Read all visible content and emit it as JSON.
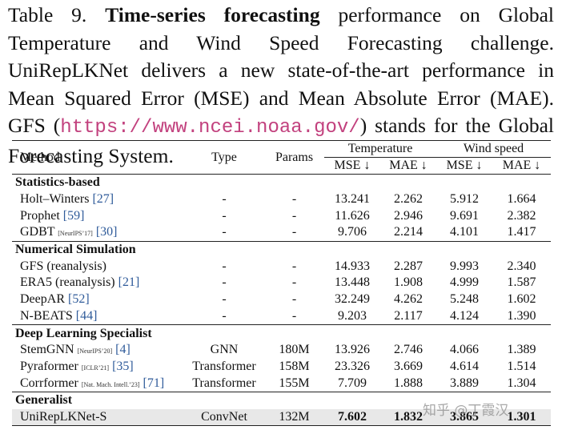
{
  "caption": {
    "label": "Table 9.",
    "bold": "Time-series forecasting",
    "text": " performance on Global Temperature and Wind Speed Forecasting challenge. UniRepLKNet delivers a new state-of-the-art performance in Mean Squared Error (MSE) and Mean Absolute Error (MAE). GFS (",
    "url": "https://www.ncei.noaa.gov/",
    "tail": ") stands for the Global Forecasting System."
  },
  "table": {
    "header": {
      "method": "Method",
      "type": "Type",
      "params": "Params",
      "groups": [
        "Temperature",
        "Wind speed"
      ],
      "metrics": [
        "MSE ↓",
        "MAE ↓",
        "MSE ↓",
        "MAE ↓"
      ]
    },
    "sections": [
      {
        "name": "Statistics-based",
        "rows": [
          {
            "method": "Holt–Winters",
            "ref": "[27]",
            "type": "-",
            "params": "-",
            "values": [
              "13.241",
              "2.262",
              "5.912",
              "1.664"
            ]
          },
          {
            "method": "Prophet",
            "ref": "[59]",
            "type": "-",
            "params": "-",
            "values": [
              "11.626",
              "2.946",
              "9.691",
              "2.382"
            ]
          },
          {
            "method": "GDBT",
            "venue": "[NeurIPS’17]",
            "ref": "[30]",
            "type": "-",
            "params": "-",
            "values": [
              "9.706",
              "2.214",
              "4.101",
              "1.417"
            ]
          }
        ]
      },
      {
        "name": "Numerical Simulation",
        "rows": [
          {
            "method": "GFS (reanalysis)",
            "type": "-",
            "params": "-",
            "values": [
              "14.933",
              "2.287",
              "9.993",
              "2.340"
            ]
          },
          {
            "method": "ERA5 (reanalysis)",
            "ref": "[21]",
            "type": "-",
            "params": "-",
            "values": [
              "13.448",
              "1.908",
              "4.999",
              "1.587"
            ]
          },
          {
            "method": "DeepAR",
            "ref": "[52]",
            "type": "-",
            "params": "-",
            "values": [
              "32.249",
              "4.262",
              "5.248",
              "1.602"
            ]
          },
          {
            "method": "N-BEATS",
            "ref": "[44]",
            "type": "-",
            "params": "-",
            "values": [
              "9.203",
              "2.117",
              "4.124",
              "1.390"
            ]
          }
        ]
      },
      {
        "name": "Deep Learning Specialist",
        "rows": [
          {
            "method": "StemGNN",
            "venue": "[NeurIPS’20]",
            "ref": "[4]",
            "type": "GNN",
            "params": "180M",
            "values": [
              "13.926",
              "2.746",
              "4.066",
              "1.389"
            ]
          },
          {
            "method": "Pyraformer",
            "venue": "[ICLR’21]",
            "ref": "[35]",
            "type": "Transformer",
            "params": "158M",
            "values": [
              "23.326",
              "3.669",
              "4.614",
              "1.514"
            ]
          },
          {
            "method": "Corrformer",
            "venue": "[Nat. Mach. Intell.’23]",
            "ref": "[71]",
            "type": "Transformer",
            "params": "155M",
            "values": [
              "7.709",
              "1.888",
              "3.889",
              "1.304"
            ]
          }
        ]
      },
      {
        "name": "Generalist",
        "rows": [
          {
            "method": "UniRepLKNet-S",
            "type": "ConvNet",
            "params": "132M",
            "values": [
              "7.602",
              "1.832",
              "3.865",
              "1.301"
            ],
            "bold": true,
            "highlight": true
          }
        ]
      }
    ]
  },
  "watermark": "知乎 @丁霞汉"
}
